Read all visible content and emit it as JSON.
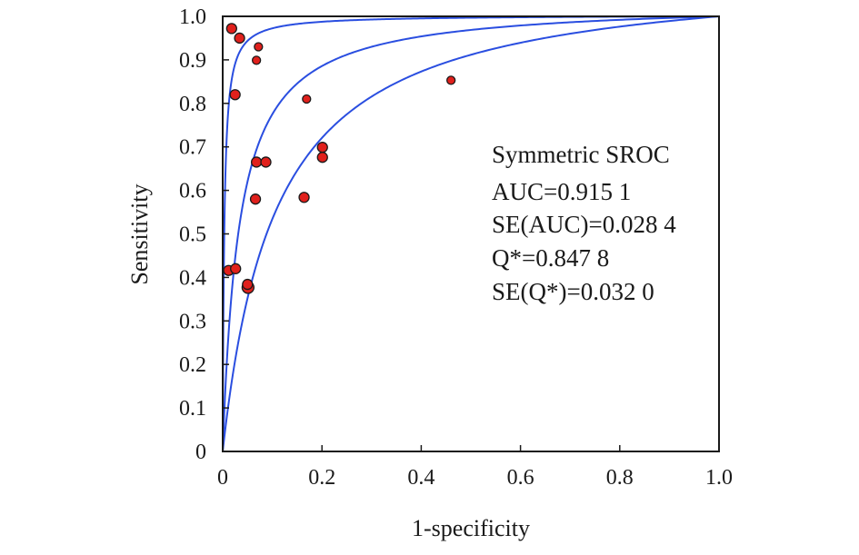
{
  "chart_data": {
    "type": "scatter",
    "xlabel": "1-specificity",
    "ylabel": "Sensitivity",
    "xlim": [
      0,
      1.0
    ],
    "ylim": [
      0,
      1.0
    ],
    "x_ticks": [
      "0",
      "0.2",
      "0.4",
      "0.6",
      "0.8",
      "1.0"
    ],
    "x_tick_values": [
      0,
      0.2,
      0.4,
      0.6,
      0.8,
      1.0
    ],
    "y_ticks": [
      "0",
      "0.1",
      "0.2",
      "0.3",
      "0.4",
      "0.5",
      "0.6",
      "0.7",
      "0.8",
      "0.9",
      "1.0"
    ],
    "y_tick_values": [
      0,
      0.1,
      0.2,
      0.3,
      0.4,
      0.5,
      0.6,
      0.7,
      0.8,
      0.9,
      1.0
    ],
    "grid": false,
    "points": [
      {
        "x": 0.018,
        "y": 0.972,
        "size": "medium"
      },
      {
        "x": 0.034,
        "y": 0.95,
        "size": "medium"
      },
      {
        "x": 0.072,
        "y": 0.93,
        "size": "small"
      },
      {
        "x": 0.068,
        "y": 0.899,
        "size": "small"
      },
      {
        "x": 0.025,
        "y": 0.82,
        "size": "medium"
      },
      {
        "x": 0.169,
        "y": 0.81,
        "size": "small"
      },
      {
        "x": 0.46,
        "y": 0.853,
        "size": "small"
      },
      {
        "x": 0.201,
        "y": 0.699,
        "size": "medium"
      },
      {
        "x": 0.201,
        "y": 0.676,
        "size": "medium"
      },
      {
        "x": 0.068,
        "y": 0.665,
        "size": "medium"
      },
      {
        "x": 0.087,
        "y": 0.665,
        "size": "medium"
      },
      {
        "x": 0.164,
        "y": 0.584,
        "size": "medium"
      },
      {
        "x": 0.066,
        "y": 0.58,
        "size": "medium"
      },
      {
        "x": 0.012,
        "y": 0.416,
        "size": "medium"
      },
      {
        "x": 0.026,
        "y": 0.42,
        "size": "medium"
      },
      {
        "x": 0.051,
        "y": 0.377,
        "size": "large"
      },
      {
        "x": 0.05,
        "y": 0.384,
        "size": "medium"
      }
    ],
    "curves": [
      {
        "auc": 0.985
      },
      {
        "auc": 0.9151
      },
      {
        "auc": 0.83
      }
    ],
    "colors": {
      "point_fill": "#e0201c",
      "point_stroke": "#1a1a1a",
      "curve": "#2a4ee0",
      "axis": "#1a1a1a"
    },
    "annotation": {
      "lines": [
        "Symmetric SROC",
        "AUC=0.915 1",
        "SE(AUC)=0.028 4",
        "Q*=0.847 8",
        "SE(Q*)=0.032 0"
      ]
    }
  }
}
